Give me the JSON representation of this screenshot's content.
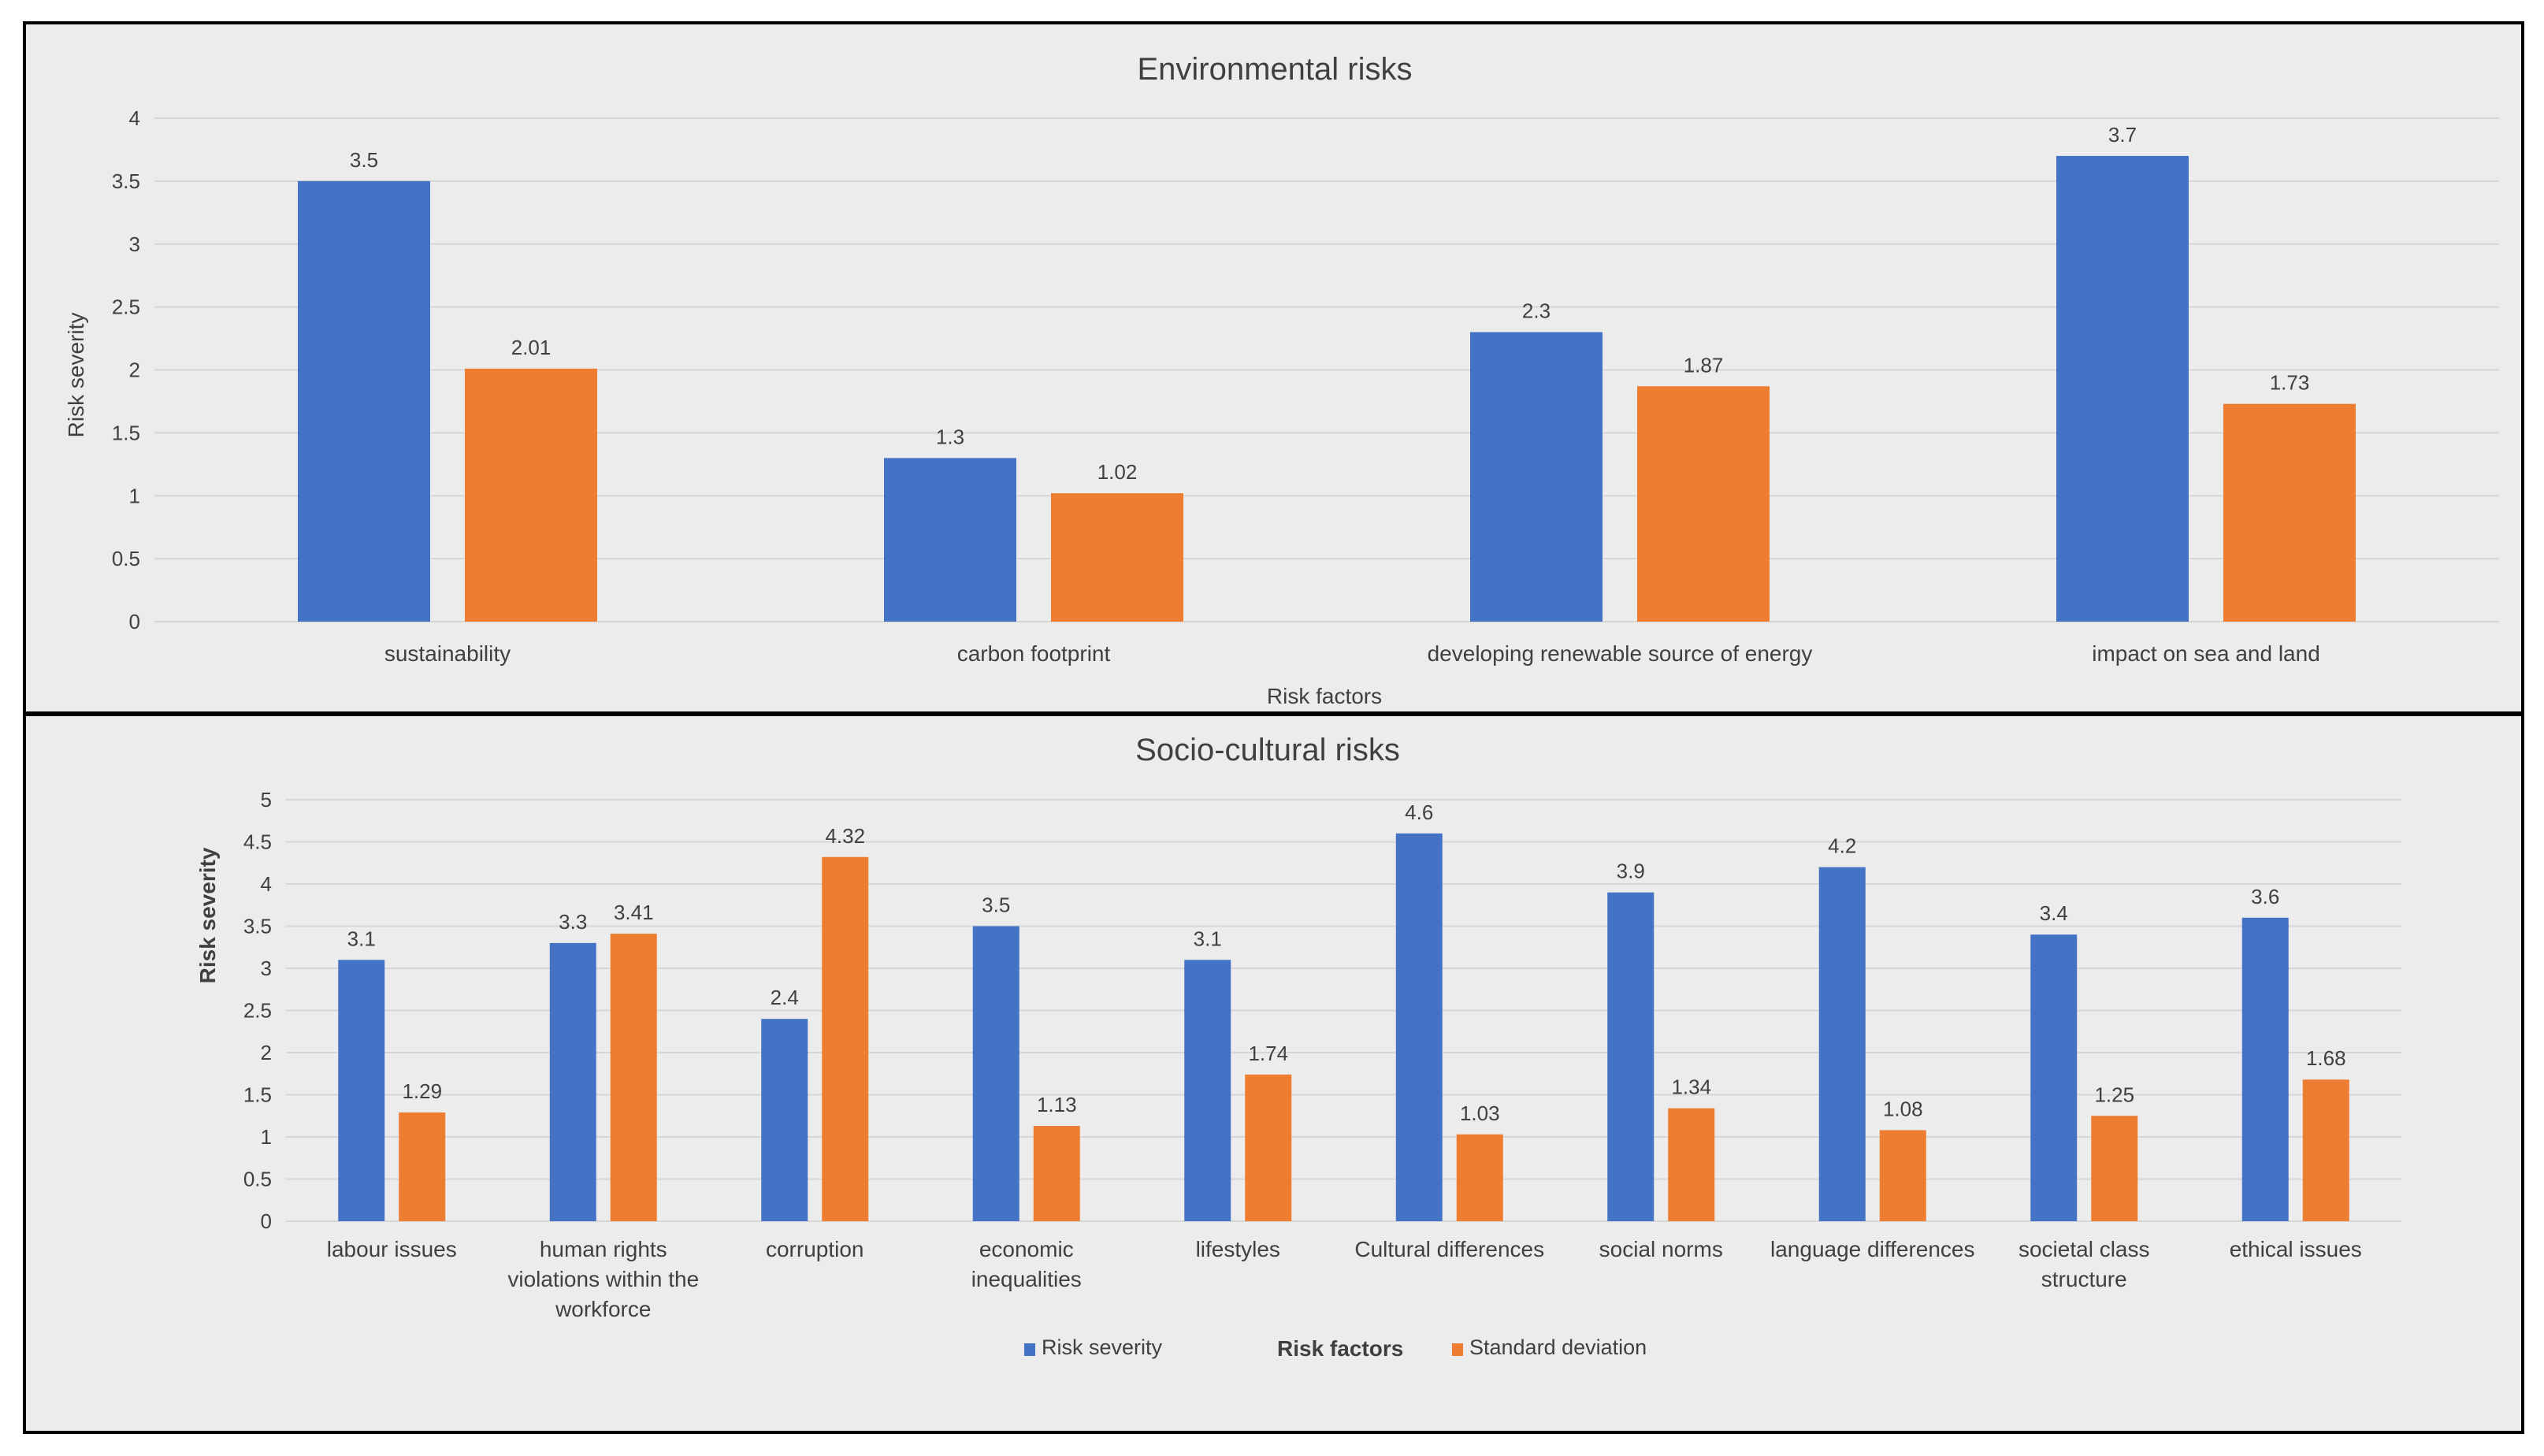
{
  "colors": {
    "risk": "#4472c4",
    "std": "#ed7d31"
  },
  "chart_data": [
    {
      "type": "bar",
      "title": "Environmental risks",
      "xlabel": "Risk factors",
      "ylabel": "Risk severity",
      "ylim": [
        0,
        4
      ],
      "yticks": [
        "0",
        "0.5",
        "1",
        "1.5",
        "2",
        "2.5",
        "3",
        "3.5",
        "4"
      ],
      "categories": [
        [
          "sustainability"
        ],
        [
          "carbon footprint"
        ],
        [
          "developing renewable source of energy"
        ],
        [
          "impact on sea and land"
        ]
      ],
      "series": [
        {
          "name": "Risk severity",
          "values": [
            3.5,
            1.3,
            2.3,
            3.7
          ],
          "labels": [
            "3.5",
            "1.3",
            "2.3",
            "3.7"
          ]
        },
        {
          "name": "Standard deviation",
          "values": [
            2.01,
            1.02,
            1.87,
            1.73
          ],
          "labels": [
            "2.01",
            "1.02",
            "1.87",
            "1.73"
          ]
        }
      ]
    },
    {
      "type": "bar",
      "title": "Socio-cultural risks",
      "xlabel": "Risk factors",
      "ylabel": "Risk severity",
      "ylim": [
        0,
        5
      ],
      "yticks": [
        "0",
        "0.5",
        "1",
        "1.5",
        "2",
        "2.5",
        "3",
        "3.5",
        "4",
        "4.5",
        "5"
      ],
      "categories": [
        [
          "labour issues"
        ],
        [
          "human rights",
          "violations within the",
          "workforce"
        ],
        [
          "corruption"
        ],
        [
          "economic",
          "inequalities"
        ],
        [
          "lifestyles"
        ],
        [
          "Cultural differences"
        ],
        [
          "social norms"
        ],
        [
          "language differences"
        ],
        [
          "societal class",
          "structure"
        ],
        [
          "ethical issues"
        ]
      ],
      "series": [
        {
          "name": "Risk severity",
          "values": [
            3.1,
            3.3,
            2.4,
            3.5,
            3.1,
            4.6,
            3.9,
            4.2,
            3.4,
            3.6
          ],
          "labels": [
            "3.1",
            "3.3",
            "2.4",
            "3.5",
            "3.1",
            "4.6",
            "3.9",
            "4.2",
            "3.4",
            "3.6"
          ]
        },
        {
          "name": "Standard deviation",
          "values": [
            1.29,
            3.41,
            4.32,
            1.13,
            1.74,
            1.03,
            1.34,
            1.08,
            1.25,
            1.68
          ],
          "labels": [
            "1.29",
            "3.41",
            "4.32",
            "1.13",
            "1.74",
            "1.03",
            "1.34",
            "1.08",
            "1.25",
            "1.68"
          ]
        }
      ],
      "legend": [
        "Risk severity",
        "Risk factors",
        "Standard deviation"
      ]
    }
  ]
}
